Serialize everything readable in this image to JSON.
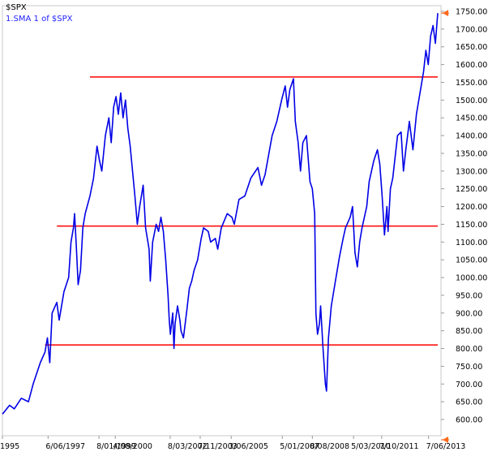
{
  "header": {
    "symbol": "$SPX",
    "legend": "1.SMA 1  of $SPX"
  },
  "colors": {
    "price_line": "#0000e6",
    "support_line": "#ff0000",
    "frame": "#c8c8c8",
    "tick_text": "#000000",
    "price_marker": "#ff6a1a"
  },
  "chart_data": {
    "type": "line",
    "title": "",
    "ylabel": "",
    "xlabel": "",
    "ylim": [
      600,
      1750
    ],
    "xlim": [
      1995.5,
      2013.9
    ],
    "y_ticks": [
      600,
      650,
      700,
      750,
      800,
      850,
      900,
      950,
      1000,
      1050,
      1100,
      1150,
      1200,
      1250,
      1300,
      1350,
      1400,
      1450,
      1500,
      1550,
      1600,
      1650,
      1700,
      1750
    ],
    "y_tick_labels": [
      "600.00",
      "650.00",
      "700.00",
      "750.00",
      "800.00",
      "850.00",
      "900.00",
      "950.00",
      "1000.00",
      "1050.00",
      "1100.00",
      "1150.00",
      "1200.00",
      "1250.00",
      "1300.00",
      "1350.00",
      "1400.00",
      "1450.00",
      "1500.00",
      "1550.00",
      "1600.00",
      "1650.00",
      "1700.00",
      "1750.00"
    ],
    "x_ticks": [
      {
        "x": 1995.5,
        "label": "1995"
      },
      {
        "x": 1997.43,
        "label": "6/06/1997"
      },
      {
        "x": 1999.58,
        "label": "8/01/1999"
      },
      {
        "x": 2000.27,
        "label": "4/08/2000"
      },
      {
        "x": 2002.59,
        "label": "8/03/2002"
      },
      {
        "x": 2003.86,
        "label": "7/11/2003"
      },
      {
        "x": 2005.17,
        "label": "3/06/2005"
      },
      {
        "x": 2007.33,
        "label": "5/01/2007"
      },
      {
        "x": 2008.6,
        "label": "8/08/2008"
      },
      {
        "x": 2010.34,
        "label": "5/03/2010"
      },
      {
        "x": 2011.53,
        "label": "7/10/2011"
      },
      {
        "x": 2013.51,
        "label": "7/06/2013"
      }
    ],
    "horizontal_lines": [
      {
        "y": 1565,
        "x_start": 1999.2,
        "x_end": 2013.9
      },
      {
        "y": 1145,
        "x_start": 1997.8,
        "x_end": 2013.9
      },
      {
        "y": 810,
        "x_start": 1997.3,
        "x_end": 2013.9
      }
    ],
    "price_marker": 1745,
    "series": [
      {
        "values": [
          [
            1995.5,
            615
          ],
          [
            1995.8,
            640
          ],
          [
            1996.0,
            630
          ],
          [
            1996.3,
            660
          ],
          [
            1996.6,
            650
          ],
          [
            1996.8,
            700
          ],
          [
            1997.1,
            760
          ],
          [
            1997.3,
            790
          ],
          [
            1997.4,
            830
          ],
          [
            1997.5,
            760
          ],
          [
            1997.6,
            900
          ],
          [
            1997.8,
            930
          ],
          [
            1997.9,
            880
          ],
          [
            1998.1,
            960
          ],
          [
            1998.3,
            1000
          ],
          [
            1998.4,
            1100
          ],
          [
            1998.5,
            1140
          ],
          [
            1998.55,
            1180
          ],
          [
            1998.62,
            1090
          ],
          [
            1998.7,
            980
          ],
          [
            1998.8,
            1020
          ],
          [
            1998.9,
            1140
          ],
          [
            1999.0,
            1180
          ],
          [
            1999.2,
            1230
          ],
          [
            1999.35,
            1280
          ],
          [
            1999.5,
            1370
          ],
          [
            1999.6,
            1330
          ],
          [
            1999.7,
            1300
          ],
          [
            1999.85,
            1400
          ],
          [
            2000.0,
            1450
          ],
          [
            2000.1,
            1380
          ],
          [
            2000.2,
            1480
          ],
          [
            2000.3,
            1510
          ],
          [
            2000.4,
            1460
          ],
          [
            2000.5,
            1520
          ],
          [
            2000.6,
            1450
          ],
          [
            2000.7,
            1500
          ],
          [
            2000.8,
            1420
          ],
          [
            2000.9,
            1370
          ],
          [
            2001.0,
            1300
          ],
          [
            2001.1,
            1230
          ],
          [
            2001.2,
            1150
          ],
          [
            2001.3,
            1200
          ],
          [
            2001.45,
            1260
          ],
          [
            2001.55,
            1140
          ],
          [
            2001.7,
            1080
          ],
          [
            2001.75,
            990
          ],
          [
            2001.85,
            1100
          ],
          [
            2002.0,
            1150
          ],
          [
            2002.1,
            1130
          ],
          [
            2002.2,
            1170
          ],
          [
            2002.3,
            1130
          ],
          [
            2002.4,
            1050
          ],
          [
            2002.5,
            950
          ],
          [
            2002.55,
            880
          ],
          [
            2002.6,
            840
          ],
          [
            2002.7,
            900
          ],
          [
            2002.75,
            800
          ],
          [
            2002.8,
            870
          ],
          [
            2002.9,
            920
          ],
          [
            2003.0,
            880
          ],
          [
            2003.05,
            850
          ],
          [
            2003.15,
            830
          ],
          [
            2003.3,
            910
          ],
          [
            2003.4,
            970
          ],
          [
            2003.5,
            990
          ],
          [
            2003.6,
            1020
          ],
          [
            2003.75,
            1050
          ],
          [
            2003.9,
            1110
          ],
          [
            2004.0,
            1140
          ],
          [
            2004.2,
            1130
          ],
          [
            2004.3,
            1100
          ],
          [
            2004.5,
            1110
          ],
          [
            2004.6,
            1080
          ],
          [
            2004.75,
            1140
          ],
          [
            2005.0,
            1180
          ],
          [
            2005.2,
            1170
          ],
          [
            2005.3,
            1150
          ],
          [
            2005.5,
            1220
          ],
          [
            2005.75,
            1230
          ],
          [
            2006.0,
            1280
          ],
          [
            2006.3,
            1310
          ],
          [
            2006.45,
            1260
          ],
          [
            2006.6,
            1290
          ],
          [
            2006.9,
            1400
          ],
          [
            2007.1,
            1440
          ],
          [
            2007.3,
            1500
          ],
          [
            2007.45,
            1540
          ],
          [
            2007.55,
            1480
          ],
          [
            2007.65,
            1530
          ],
          [
            2007.8,
            1560
          ],
          [
            2007.88,
            1440
          ],
          [
            2008.0,
            1380
          ],
          [
            2008.1,
            1300
          ],
          [
            2008.2,
            1380
          ],
          [
            2008.35,
            1400
          ],
          [
            2008.5,
            1270
          ],
          [
            2008.6,
            1250
          ],
          [
            2008.7,
            1180
          ],
          [
            2008.75,
            900
          ],
          [
            2008.82,
            840
          ],
          [
            2008.9,
            870
          ],
          [
            2008.95,
            920
          ],
          [
            2009.05,
            800
          ],
          [
            2009.15,
            700
          ],
          [
            2009.2,
            680
          ],
          [
            2009.28,
            830
          ],
          [
            2009.4,
            920
          ],
          [
            2009.5,
            960
          ],
          [
            2009.6,
            1000
          ],
          [
            2009.75,
            1060
          ],
          [
            2009.9,
            1110
          ],
          [
            2010.0,
            1140
          ],
          [
            2010.2,
            1170
          ],
          [
            2010.3,
            1200
          ],
          [
            2010.4,
            1070
          ],
          [
            2010.5,
            1030
          ],
          [
            2010.6,
            1100
          ],
          [
            2010.7,
            1140
          ],
          [
            2010.9,
            1200
          ],
          [
            2011.0,
            1270
          ],
          [
            2011.2,
            1330
          ],
          [
            2011.35,
            1360
          ],
          [
            2011.45,
            1320
          ],
          [
            2011.55,
            1230
          ],
          [
            2011.65,
            1120
          ],
          [
            2011.75,
            1200
          ],
          [
            2011.8,
            1130
          ],
          [
            2011.9,
            1250
          ],
          [
            2012.0,
            1280
          ],
          [
            2012.2,
            1400
          ],
          [
            2012.35,
            1410
          ],
          [
            2012.45,
            1300
          ],
          [
            2012.55,
            1360
          ],
          [
            2012.7,
            1440
          ],
          [
            2012.85,
            1360
          ],
          [
            2013.0,
            1460
          ],
          [
            2013.15,
            1520
          ],
          [
            2013.3,
            1580
          ],
          [
            2013.4,
            1640
          ],
          [
            2013.5,
            1600
          ],
          [
            2013.6,
            1680
          ],
          [
            2013.7,
            1710
          ],
          [
            2013.8,
            1660
          ],
          [
            2013.9,
            1745
          ]
        ]
      }
    ]
  }
}
